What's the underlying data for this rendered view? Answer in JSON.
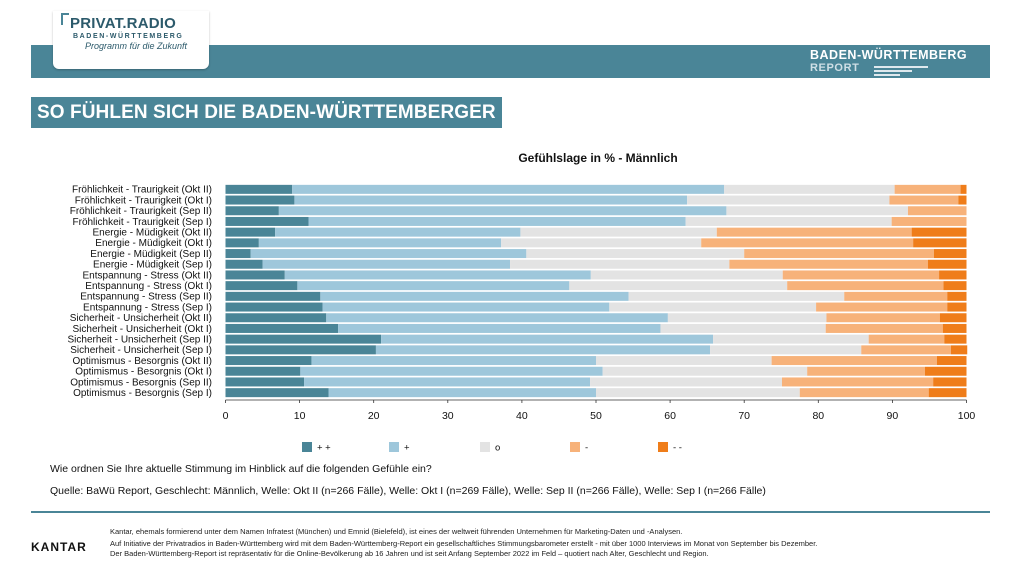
{
  "header": {
    "logo_title": "PRIVAT.RADIO",
    "logo_subtitle": "BADEN-WÜRTTEMBERG",
    "logo_tagline": "Programm für die Zukunft",
    "report_title": "BADEN-WÜRTTEMBERG",
    "report_subtitle": "REPORT"
  },
  "headline": "SO FÜHLEN SICH DIE BADEN-WÜRTTEMBERGER",
  "chart_data": {
    "type": "bar",
    "orientation": "horizontal",
    "stacked": true,
    "title": "Gefühlslage in % - Männlich",
    "categories": [
      "Fröhlichkeit - Traurigkeit (Okt II)",
      "Fröhlichkeit - Traurigkeit (Okt I)",
      "Fröhlichkeit - Traurigkeit (Sep II)",
      "Fröhlichkeit - Traurigkeit (Sep I)",
      "Energie - Müdigkeit (Okt II)",
      "Energie - Müdigkeit (Okt I)",
      "Energie - Müdigkeit (Sep II)",
      "Energie - Müdigkeit (Sep I)",
      "Entspannung - Stress (Okt II)",
      "Entspannung - Stress (Okt I)",
      "Entspannung - Stress (Sep II)",
      "Entspannung - Stress (Sep I)",
      "Sicherheit - Unsicherheit (Okt II)",
      "Sicherheit - Unsicherheit (Okt I)",
      "Sicherheit - Unsicherheit (Sep II)",
      "Sicherheit - Unsicherheit (Sep I)",
      "Optimismus - Besorgnis (Okt II)",
      "Optimismus - Besorgnis (Okt I)",
      "Optimismus - Besorgnis (Sep II)",
      "Optimismus - Besorgnis (Sep I)"
    ],
    "series": [
      {
        "name": "+ +",
        "color": "#4a8597",
        "values": [
          9,
          9.3,
          7.2,
          11.2,
          6.7,
          4.5,
          3.4,
          5,
          8,
          9.7,
          12.8,
          13.1,
          13.6,
          15.2,
          21,
          20.3,
          11.6,
          10.1,
          10.6,
          13.9
        ]
      },
      {
        "name": "+",
        "color": "#9ec7db",
        "values": [
          58.3,
          53,
          60.4,
          50.9,
          33.1,
          32.7,
          37.2,
          33.4,
          41.3,
          36.7,
          41.6,
          38.7,
          46.1,
          43.5,
          44.8,
          45.1,
          38.4,
          40.8,
          38.6,
          36.1
        ]
      },
      {
        "name": "o",
        "color": "#e3e3e3",
        "values": [
          23,
          27.3,
          24.5,
          27.8,
          26.5,
          27,
          29.4,
          29.6,
          25.9,
          29.4,
          29.1,
          27.9,
          21.4,
          22.3,
          21,
          20.4,
          23.7,
          27.6,
          25.9,
          27.5
        ]
      },
      {
        "name": "-",
        "color": "#f7b27a",
        "values": [
          8.9,
          9.3,
          7.9,
          10.1,
          26.3,
          28.6,
          25.6,
          26.8,
          21.1,
          21.1,
          13.9,
          17.7,
          15.3,
          15.8,
          10.2,
          12.1,
          22.3,
          15.9,
          20.4,
          17.4
        ]
      },
      {
        "name": "- -",
        "color": "#ef7d1a",
        "values": [
          0.8,
          1.1,
          0,
          0,
          7.4,
          7.2,
          4.4,
          5.2,
          3.7,
          3.1,
          2.6,
          2.6,
          3.6,
          3.2,
          3,
          2.2,
          4,
          5.6,
          4.5,
          5.1
        ]
      }
    ],
    "xlim": [
      0,
      100
    ],
    "xticks": [
      0,
      10,
      20,
      30,
      40,
      50,
      60,
      70,
      80,
      90,
      100
    ],
    "grid": false,
    "legend_position": "bottom"
  },
  "question": "Wie ordnen Sie Ihre aktuelle Stimmung im Hinblick auf die folgenden Gefühle ein?",
  "source": "Quelle: BaWü Report, Geschlecht: Männlich, Welle: Okt II (n=266 Fälle), Welle: Okt I (n=269 Fälle), Welle: Sep II (n=266 Fälle), Welle: Sep I (n=266 Fälle)",
  "footer": {
    "brand": "KANTAR",
    "line1": "Kantar, ehemals formierend unter dem Namen Infratest (München) und Emnid (Bielefeld), ist eines der weltweit führenden Unternehmen für Marketing-Daten und -Analysen.",
    "line2": "Auf Initiative der Privatradios in Baden-Württemberg wird mit dem Baden-Württemberg-Report ein gesellschaftliches Stimmungsbarometer erstellt - mit über 1000 Interviews im Monat von September bis Dezember.",
    "line3": "Der Baden-Württemberg-Report ist repräsentativ für die Online-Bevölkerung ab 16 Jahren und ist seit Anfang September 2022 im Feld – quotiert nach Alter, Geschlecht und Region."
  }
}
